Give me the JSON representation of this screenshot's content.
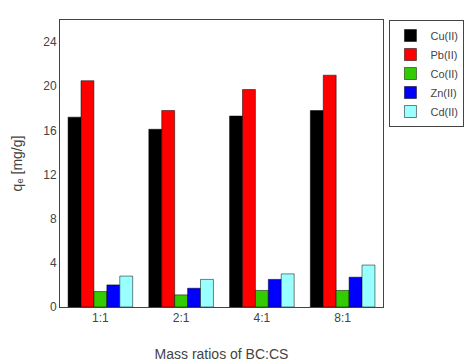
{
  "chart_data": {
    "type": "bar",
    "categories": [
      "1:1",
      "2:1",
      "4:1",
      "8:1"
    ],
    "series": [
      {
        "name": "Cu(II)",
        "color": "#000000",
        "values": [
          17.2,
          16.1,
          17.3,
          17.8
        ]
      },
      {
        "name": "Pb(II)",
        "color": "#ff0000",
        "values": [
          20.5,
          17.8,
          19.7,
          21.0
        ]
      },
      {
        "name": "Co(II)",
        "color": "#33cc00",
        "values": [
          1.4,
          1.1,
          1.5,
          1.5
        ]
      },
      {
        "name": "Zn(II)",
        "color": "#0000ff",
        "values": [
          2.0,
          1.7,
          2.5,
          2.7
        ]
      },
      {
        "name": "Cd(II)",
        "color": "#99ffff",
        "values": [
          2.8,
          2.5,
          3.0,
          3.8
        ]
      }
    ],
    "xlabel": "Mass ratios of BC:CS",
    "ylabel": "qₑ [mg/g]",
    "ylim": [
      0,
      26
    ],
    "yticks": [
      0,
      4,
      8,
      12,
      16,
      20,
      24
    ],
    "legend": "upper right",
    "grid": false
  }
}
